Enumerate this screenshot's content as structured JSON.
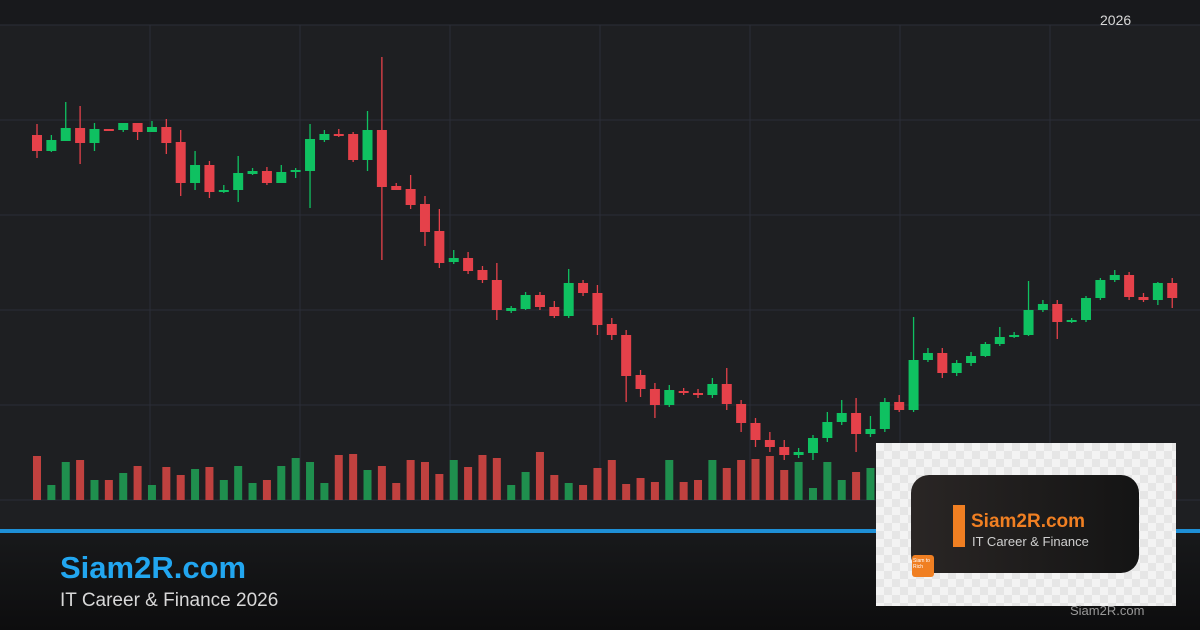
{
  "header": {
    "year_label": "2026"
  },
  "footer": {
    "brand": "Siam2R.com",
    "tagline": "IT Career & Finance 2026",
    "watermark": "Siam2R.com"
  },
  "logo": {
    "name": "Siam2R.com",
    "subtitle": "IT Career & Finance",
    "badge": "Siam to Rich"
  },
  "colors": {
    "up": "#0fc161",
    "down": "#e5414a",
    "vol_up": "#1f8f4e",
    "vol_down": "#c0413f",
    "accent": "#1e8fd6",
    "brand_orange": "#f07f22"
  },
  "chart_data": {
    "type": "candlestick",
    "grid": true,
    "ylim": [
      0,
      475
    ],
    "ohlc": [
      [
        365,
        349,
        376,
        342
      ],
      [
        349,
        360,
        365,
        348
      ],
      [
        359,
        372,
        398,
        359
      ],
      [
        372,
        357,
        394,
        336
      ],
      [
        357,
        371,
        377,
        349
      ],
      [
        371,
        369,
        371,
        369
      ],
      [
        370,
        377,
        377,
        368
      ],
      [
        377,
        368,
        377,
        360
      ],
      [
        368,
        373,
        379,
        368
      ],
      [
        373,
        357,
        381,
        346
      ],
      [
        358,
        317,
        370,
        304
      ],
      [
        317,
        335,
        349,
        310
      ],
      [
        335,
        308,
        339,
        302
      ],
      [
        308,
        310,
        315,
        307
      ],
      [
        310,
        327,
        344,
        298
      ],
      [
        326,
        329,
        332,
        325
      ],
      [
        329,
        317,
        333,
        315
      ],
      [
        317,
        328,
        335,
        317
      ],
      [
        328,
        330,
        332,
        322
      ],
      [
        329,
        361,
        376,
        292
      ],
      [
        360,
        366,
        370,
        358
      ],
      [
        366,
        364,
        371,
        363
      ],
      [
        366,
        340,
        368,
        338
      ],
      [
        340,
        370,
        389,
        329
      ],
      [
        370,
        313,
        443,
        240
      ],
      [
        314,
        310,
        317,
        310
      ],
      [
        311,
        295,
        325,
        291
      ],
      [
        296,
        268,
        304,
        254
      ],
      [
        269,
        237,
        291,
        232
      ],
      [
        238,
        242,
        250,
        236
      ],
      [
        242,
        229,
        248,
        226
      ],
      [
        230,
        220,
        234,
        217
      ],
      [
        220,
        190,
        237,
        180
      ],
      [
        189,
        192,
        194,
        187
      ],
      [
        191,
        205,
        208,
        190
      ],
      [
        205,
        193,
        208,
        190
      ],
      [
        193,
        184,
        199,
        182
      ],
      [
        184,
        217,
        231,
        182
      ],
      [
        217,
        207,
        220,
        204
      ],
      [
        207,
        175,
        215,
        165
      ],
      [
        176,
        165,
        182,
        160
      ],
      [
        165,
        124,
        170,
        98
      ],
      [
        125,
        111,
        130,
        103
      ],
      [
        111,
        95,
        117,
        82
      ],
      [
        95,
        110,
        115,
        93
      ],
      [
        109,
        107,
        112,
        105
      ],
      [
        107,
        105,
        111,
        102
      ],
      [
        105,
        116,
        122,
        102
      ],
      [
        116,
        96,
        132,
        90
      ],
      [
        96,
        77,
        100,
        68
      ],
      [
        77,
        60,
        82,
        53
      ],
      [
        60,
        53,
        68,
        48
      ],
      [
        53,
        45,
        60,
        40
      ],
      [
        45,
        48,
        52,
        42
      ],
      [
        47,
        62,
        65,
        40
      ],
      [
        62,
        78,
        88,
        58
      ],
      [
        78,
        87,
        100,
        75
      ],
      [
        87,
        66,
        102,
        48
      ],
      [
        66,
        71,
        84,
        63
      ],
      [
        71,
        98,
        102,
        68
      ],
      [
        98,
        90,
        105,
        88
      ],
      [
        90,
        140,
        183,
        88
      ],
      [
        140,
        147,
        152,
        138
      ],
      [
        147,
        127,
        152,
        122
      ],
      [
        127,
        137,
        140,
        124
      ],
      [
        137,
        144,
        148,
        134
      ],
      [
        144,
        156,
        158,
        143
      ],
      [
        156,
        163,
        173,
        154
      ],
      [
        163,
        165,
        168,
        162
      ],
      [
        165,
        190,
        219,
        164
      ],
      [
        190,
        196,
        200,
        188
      ],
      [
        196,
        178,
        200,
        161
      ],
      [
        178,
        180,
        182,
        177
      ],
      [
        180,
        202,
        204,
        178
      ],
      [
        202,
        220,
        222,
        200
      ],
      [
        220,
        225,
        230,
        218
      ],
      [
        225,
        203,
        228,
        200
      ],
      [
        203,
        200,
        207,
        198
      ],
      [
        200,
        217,
        218,
        195
      ],
      [
        217,
        202,
        222,
        192
      ]
    ],
    "volume": [
      44,
      15,
      38,
      40,
      20,
      20,
      27,
      34,
      15,
      33,
      25,
      31,
      33,
      20,
      34,
      17,
      20,
      34,
      42,
      38,
      17,
      45,
      46,
      30,
      34,
      17,
      40,
      38,
      26,
      40,
      33,
      45,
      42,
      15,
      28,
      48,
      25,
      17,
      15,
      32,
      40,
      16,
      22,
      18,
      40,
      18,
      20,
      40,
      32,
      40,
      41,
      44,
      30,
      38,
      12,
      38,
      20,
      28,
      32,
      30,
      26,
      30,
      28,
      30,
      26,
      24,
      28,
      30,
      30,
      28,
      30,
      26,
      28,
      30,
      28,
      26,
      24,
      28,
      26,
      24
    ]
  }
}
